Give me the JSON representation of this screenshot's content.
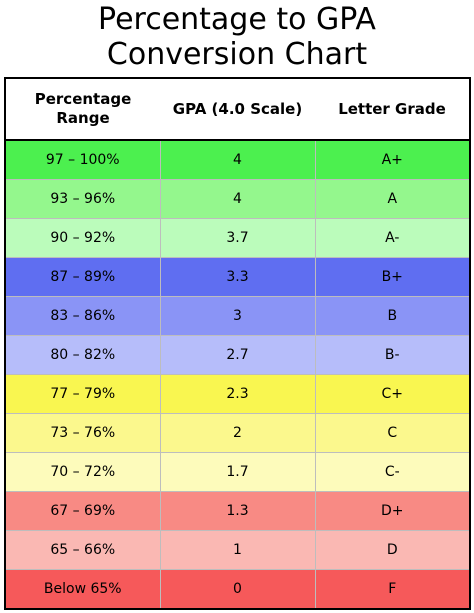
{
  "title": {
    "line1": "Percentage to GPA",
    "line2": "Conversion Chart"
  },
  "table": {
    "headers": {
      "percentage_line1": "Percentage",
      "percentage_line2": "Range",
      "gpa": "GPA (4.0 Scale)",
      "letter": "Letter Grade"
    },
    "rows": [
      {
        "range": "97 – 100%",
        "gpa": "4",
        "letter": "A+",
        "color": "#4cf04f"
      },
      {
        "range": "93 – 96%",
        "gpa": "4",
        "letter": "A",
        "color": "#94f78d"
      },
      {
        "range": "90 – 92%",
        "gpa": "3.7",
        "letter": "A-",
        "color": "#bbfcbb"
      },
      {
        "range": "87 – 89%",
        "gpa": "3.3",
        "letter": "B+",
        "color": "#5f6ef1"
      },
      {
        "range": "83 – 86%",
        "gpa": "3",
        "letter": "B",
        "color": "#8a94f6"
      },
      {
        "range": "80 – 82%",
        "gpa": "2.7",
        "letter": "B-",
        "color": "#b6bdfa"
      },
      {
        "range": "77 – 79%",
        "gpa": "2.3",
        "letter": "C+",
        "color": "#f9f650"
      },
      {
        "range": "73 – 76%",
        "gpa": "2",
        "letter": "C",
        "color": "#fbf88d"
      },
      {
        "range": "70 – 72%",
        "gpa": "1.7",
        "letter": "C-",
        "color": "#fdfbbb"
      },
      {
        "range": "67 – 69%",
        "gpa": "1.3",
        "letter": "D+",
        "color": "#f88a84"
      },
      {
        "range": "65 – 66%",
        "gpa": "1",
        "letter": "D",
        "color": "#fab8b3"
      },
      {
        "range": "Below 65%",
        "gpa": "0",
        "letter": "F",
        "color": "#f6595a"
      }
    ]
  }
}
